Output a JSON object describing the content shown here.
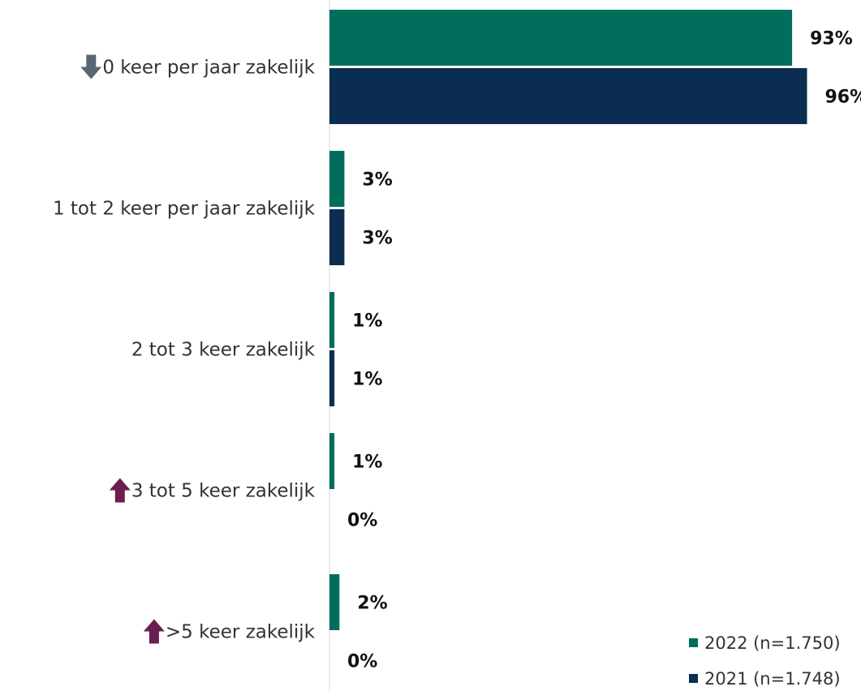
{
  "chart_data": {
    "type": "bar",
    "orientation": "horizontal",
    "categories": [
      "0 keer per jaar zakelijk",
      "1 tot 2 keer per jaar zakelijk",
      "2 tot 3 keer zakelijk",
      "3 tot 5 keer zakelijk",
      ">5 keer zakelijk"
    ],
    "category_markers": [
      "arrow-down",
      null,
      null,
      "arrow-up",
      "arrow-up"
    ],
    "series": [
      {
        "name": "2022 (n=1.750)",
        "color": "#006E5A",
        "values": [
          93,
          3,
          1,
          1,
          2
        ],
        "labels": [
          "93%",
          "3%",
          "1%",
          "1%",
          "2%"
        ]
      },
      {
        "name": "2021 (n=1.748)",
        "color": "#0B2D52",
        "values": [
          96,
          3,
          1,
          0,
          0
        ],
        "labels": [
          "96%",
          "3%",
          "1%",
          "0%",
          "0%"
        ]
      }
    ],
    "xlim": [
      0,
      100
    ],
    "legend_position": "bottom-right",
    "marker_colors": {
      "arrow-down": "#5B6675",
      "arrow-up": "#6B1E4F"
    },
    "grid": false
  }
}
